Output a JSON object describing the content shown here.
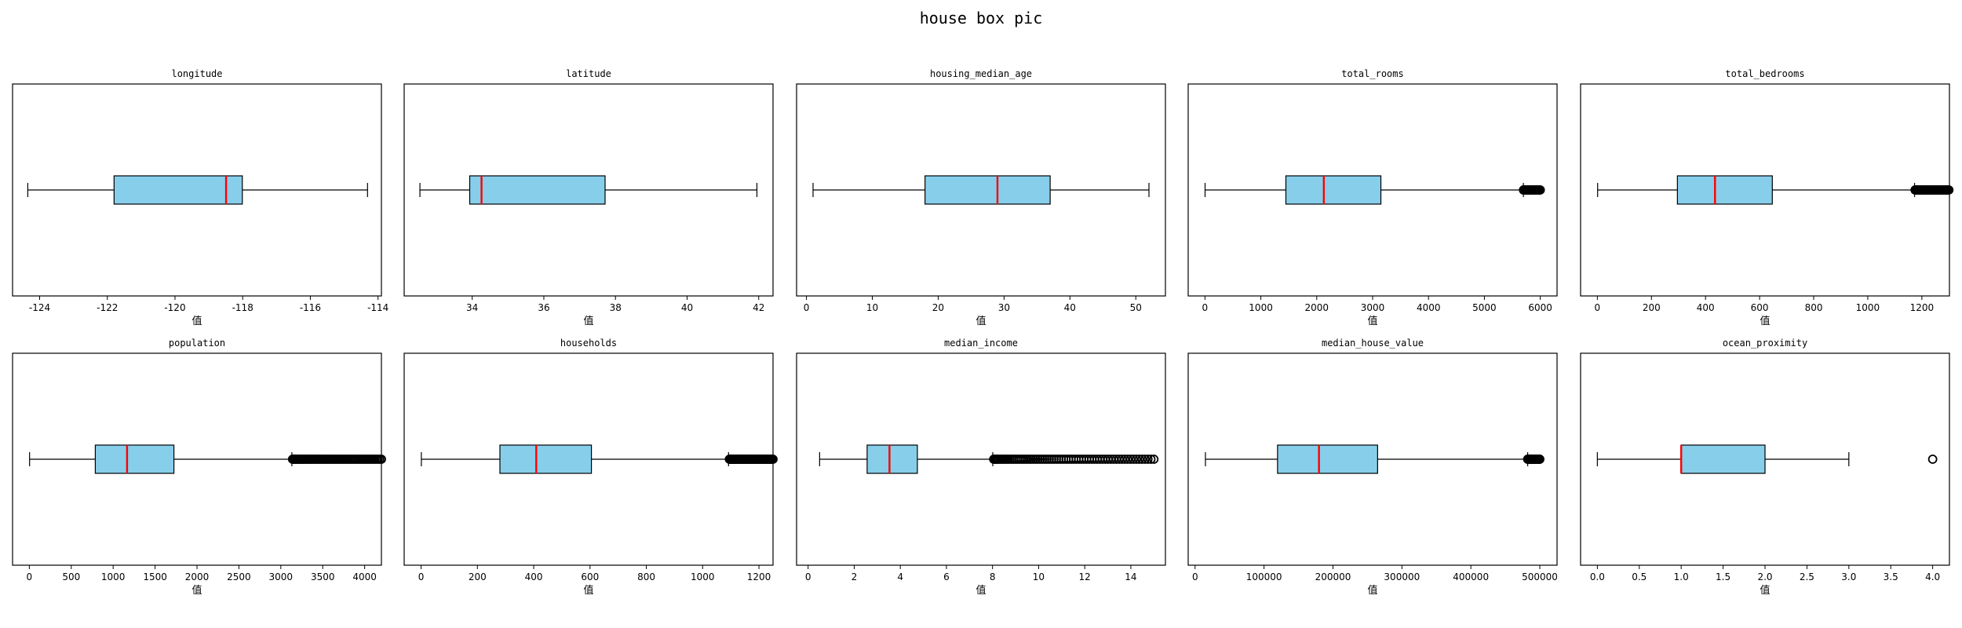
{
  "figure_title": "house box pic",
  "colors": {
    "box_fill": "#87CEEB",
    "median": "#FF0000",
    "edge": "#000000",
    "outlier": "#000000"
  },
  "chart_data": [
    {
      "type": "box",
      "title": "longitude",
      "xlabel": "值",
      "xlim": [
        -124.8,
        -113.9
      ],
      "ticks": [
        -124,
        -122,
        -120,
        -118,
        -116,
        -114
      ],
      "tick_labels": [
        "-124",
        "-122",
        "-120",
        "-118",
        "-116",
        "-114"
      ],
      "whisker_low": -124.35,
      "q1": -121.8,
      "median": -118.49,
      "q3": -118.01,
      "whisker_high": -114.31,
      "outliers": []
    },
    {
      "type": "box",
      "title": "latitude",
      "xlabel": "值",
      "xlim": [
        32.1,
        42.4
      ],
      "ticks": [
        34,
        36,
        38,
        40,
        42
      ],
      "tick_labels": [
        "34",
        "36",
        "38",
        "40",
        "42"
      ],
      "whisker_low": 32.54,
      "q1": 33.93,
      "median": 34.26,
      "q3": 37.71,
      "whisker_high": 41.95,
      "outliers": []
    },
    {
      "type": "box",
      "title": "housing_median_age",
      "xlabel": "值",
      "xlim": [
        -1.5,
        54.5
      ],
      "ticks": [
        0,
        10,
        20,
        30,
        40,
        50
      ],
      "tick_labels": [
        "0",
        "10",
        "20",
        "30",
        "40",
        "50"
      ],
      "whisker_low": 1,
      "q1": 18,
      "median": 29,
      "q3": 37,
      "whisker_high": 52,
      "outliers": []
    },
    {
      "type": "box",
      "title": "total_rooms",
      "xlabel": "值",
      "xlim": [
        -300,
        6300
      ],
      "ticks": [
        0,
        1000,
        2000,
        3000,
        4000,
        5000,
        6000
      ],
      "tick_labels": [
        "0",
        "1000",
        "2000",
        "3000",
        "4000",
        "5000",
        "6000"
      ],
      "whisker_low": 2,
      "q1": 1448,
      "median": 2127,
      "q3": 3148,
      "whisker_high": 5698,
      "outliers_range": [
        5700,
        6000
      ]
    },
    {
      "type": "box",
      "title": "total_bedrooms",
      "xlabel": "值",
      "xlim": [
        -62,
        1302
      ],
      "ticks": [
        0,
        200,
        400,
        600,
        800,
        1000,
        1200
      ],
      "tick_labels": [
        "0",
        "200",
        "400",
        "600",
        "800",
        "1000",
        "1200"
      ],
      "whisker_low": 1,
      "q1": 296,
      "median": 435,
      "q3": 647,
      "whisker_high": 1173,
      "outliers_range": [
        1175,
        1300
      ]
    },
    {
      "type": "box",
      "title": "population",
      "xlabel": "值",
      "xlim": [
        -200,
        4200
      ],
      "ticks": [
        0,
        500,
        1000,
        1500,
        2000,
        2500,
        3000,
        3500,
        4000
      ],
      "tick_labels": [
        "0",
        "500",
        "1000",
        "1500",
        "2000",
        "2500",
        "3000",
        "3500",
        "4000"
      ],
      "whisker_low": 3,
      "q1": 787,
      "median": 1166,
      "q3": 1725,
      "whisker_high": 3132,
      "outliers_range": [
        3140,
        4200
      ]
    },
    {
      "type": "box",
      "title": "households",
      "xlabel": "值",
      "xlim": [
        -60,
        1250
      ],
      "ticks": [
        0,
        200,
        400,
        600,
        800,
        1000,
        1200
      ],
      "tick_labels": [
        "0",
        "200",
        "400",
        "600",
        "800",
        "1000",
        "1200"
      ],
      "whisker_low": 1,
      "q1": 280,
      "median": 409,
      "q3": 605,
      "whisker_high": 1092,
      "outliers_range": [
        1095,
        1250
      ]
    },
    {
      "type": "box",
      "title": "median_income",
      "xlabel": "值",
      "xlim": [
        -0.5,
        15.5
      ],
      "ticks": [
        0,
        2,
        4,
        6,
        8,
        10,
        12,
        14
      ],
      "tick_labels": [
        "0",
        "2",
        "4",
        "6",
        "8",
        "10",
        "12",
        "14"
      ],
      "whisker_low": 0.5,
      "q1": 2.56,
      "median": 3.53,
      "q3": 4.74,
      "whisker_high": 8.01,
      "outliers_range": [
        8.05,
        15.0
      ]
    },
    {
      "type": "box",
      "title": "median_house_value",
      "xlabel": "值",
      "xlim": [
        -10000,
        525000
      ],
      "ticks": [
        0,
        100000,
        200000,
        300000,
        400000,
        500000
      ],
      "tick_labels": [
        "0",
        "100000",
        "200000",
        "300000",
        "400000",
        "500000"
      ],
      "whisker_low": 14999,
      "q1": 119600,
      "median": 179700,
      "q3": 264725,
      "whisker_high": 482412,
      "outliers_range": [
        482500,
        500001
      ]
    },
    {
      "type": "box",
      "title": "ocean_proximity",
      "xlabel": "值",
      "xlim": [
        -0.2,
        4.2
      ],
      "ticks": [
        0.0,
        0.5,
        1.0,
        1.5,
        2.0,
        2.5,
        3.0,
        3.5,
        4.0
      ],
      "tick_labels": [
        "0.0",
        "0.5",
        "1.0",
        "1.5",
        "2.0",
        "2.5",
        "3.0",
        "3.5",
        "4.0"
      ],
      "whisker_low": 0,
      "q1": 1,
      "median": 1,
      "q3": 2,
      "whisker_high": 3,
      "outliers": [
        4
      ]
    }
  ]
}
